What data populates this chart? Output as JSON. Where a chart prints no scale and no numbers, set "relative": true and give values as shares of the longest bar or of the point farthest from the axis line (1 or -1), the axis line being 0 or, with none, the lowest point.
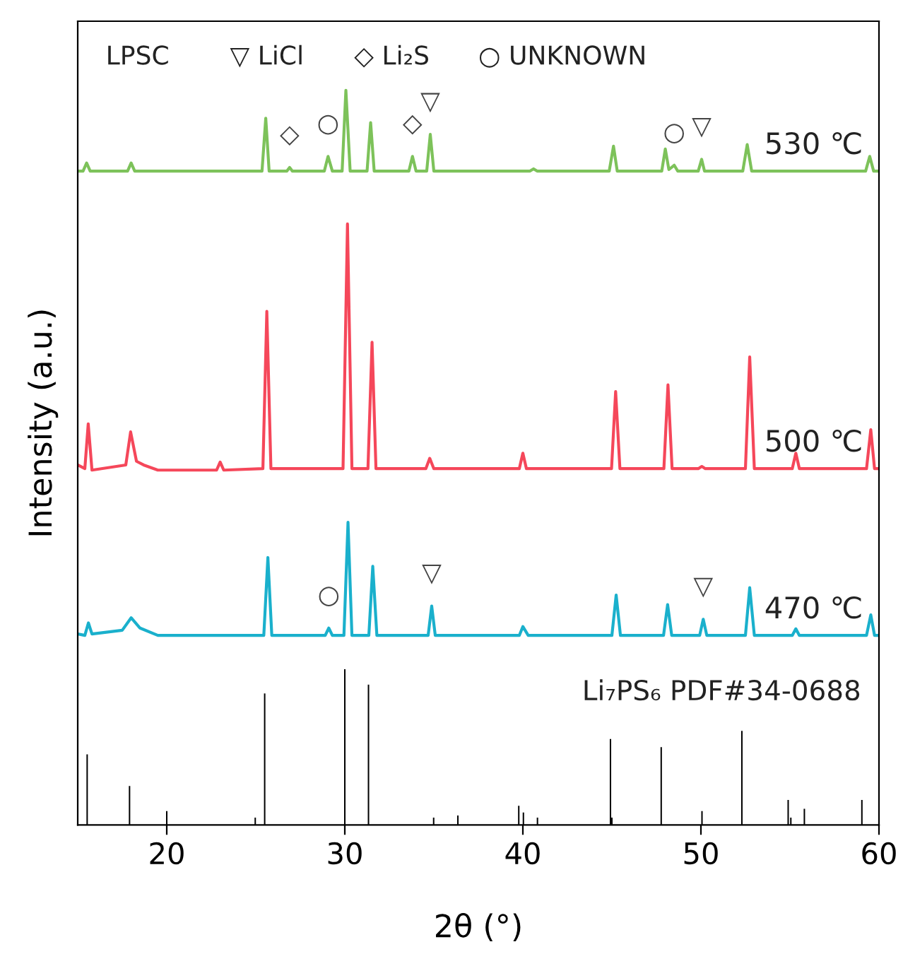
{
  "chart_data": {
    "type": "line",
    "relative": true,
    "xlabel": "2θ (°)",
    "ylabel": "Intensity (a.u.)",
    "xlim": [
      15,
      60
    ],
    "xticks": [
      20,
      30,
      40,
      50,
      60
    ],
    "tick_labels": "x",
    "grid": false,
    "legend": false,
    "marker": "none",
    "line_style": "solid",
    "series": [
      {
        "name": "530 ℃",
        "color": "#7dc25a",
        "x": [
          15.0,
          15.3,
          15.5,
          15.7,
          17.8,
          18.0,
          18.2,
          25.35,
          25.56,
          25.75,
          26.75,
          26.9,
          27.05,
          28.85,
          29.06,
          29.3,
          29.85,
          30.06,
          30.3,
          31.25,
          31.45,
          31.65,
          33.6,
          33.8,
          34.0,
          34.6,
          34.8,
          35.0,
          40.4,
          40.6,
          40.8,
          44.85,
          45.09,
          45.3,
          47.8,
          48.0,
          48.2,
          48.5,
          48.7,
          49.85,
          50.04,
          50.2,
          52.35,
          52.6,
          52.85,
          59.25,
          59.48,
          59.7,
          60.0
        ],
        "values": [
          0.89,
          0.89,
          0.901,
          0.89,
          0.89,
          0.901,
          0.89,
          0.89,
          0.962,
          0.89,
          0.89,
          0.895,
          0.89,
          0.89,
          0.91,
          0.89,
          0.89,
          1.0,
          0.89,
          0.89,
          0.956,
          0.89,
          0.89,
          0.91,
          0.89,
          0.89,
          0.94,
          0.89,
          0.89,
          0.893,
          0.89,
          0.89,
          0.924,
          0.89,
          0.89,
          0.92,
          0.892,
          0.898,
          0.89,
          0.89,
          0.906,
          0.89,
          0.89,
          0.926,
          0.89,
          0.89,
          0.91,
          0.89,
          0.89
        ]
      },
      {
        "name": "500 ℃",
        "color": "#f5475a",
        "x": [
          15.0,
          15.4,
          15.59,
          15.8,
          17.7,
          17.97,
          18.3,
          18.7,
          19.5,
          22.8,
          23.0,
          23.2,
          25.4,
          25.62,
          25.85,
          29.9,
          30.15,
          30.4,
          31.3,
          31.53,
          31.75,
          34.55,
          34.77,
          35.0,
          39.8,
          40.0,
          40.2,
          44.98,
          45.21,
          45.45,
          47.92,
          48.15,
          48.38,
          49.85,
          50.05,
          50.25,
          52.5,
          52.74,
          53.0,
          55.13,
          55.33,
          55.53,
          59.3,
          59.54,
          59.75,
          60.0
        ],
        "values": [
          0.49,
          0.485,
          0.546,
          0.483,
          0.49,
          0.535,
          0.495,
          0.49,
          0.483,
          0.483,
          0.494,
          0.483,
          0.485,
          0.699,
          0.485,
          0.485,
          0.818,
          0.485,
          0.485,
          0.657,
          0.485,
          0.485,
          0.499,
          0.485,
          0.485,
          0.506,
          0.485,
          0.485,
          0.59,
          0.485,
          0.485,
          0.599,
          0.485,
          0.485,
          0.488,
          0.485,
          0.485,
          0.637,
          0.485,
          0.485,
          0.506,
          0.485,
          0.485,
          0.538,
          0.485,
          0.485
        ]
      },
      {
        "name": "470 ℃",
        "color": "#1ab0cc",
        "x": [
          15.0,
          15.4,
          15.6,
          15.8,
          17.5,
          18.0,
          18.5,
          19.5,
          25.45,
          25.68,
          25.9,
          28.9,
          29.1,
          29.3,
          29.95,
          30.18,
          30.4,
          31.35,
          31.57,
          31.8,
          34.68,
          34.88,
          35.08,
          39.8,
          40.0,
          40.3,
          45.0,
          45.24,
          45.48,
          47.9,
          48.13,
          48.36,
          49.93,
          50.13,
          50.33,
          52.5,
          52.74,
          53.0,
          55.13,
          55.33,
          55.53,
          59.3,
          59.54,
          59.75,
          60.0
        ],
        "values": [
          0.26,
          0.258,
          0.275,
          0.26,
          0.265,
          0.282,
          0.268,
          0.258,
          0.258,
          0.364,
          0.258,
          0.258,
          0.268,
          0.258,
          0.258,
          0.412,
          0.258,
          0.258,
          0.352,
          0.258,
          0.258,
          0.298,
          0.258,
          0.258,
          0.27,
          0.258,
          0.258,
          0.313,
          0.258,
          0.258,
          0.3,
          0.258,
          0.258,
          0.28,
          0.258,
          0.258,
          0.323,
          0.258,
          0.258,
          0.267,
          0.258,
          0.258,
          0.286,
          0.258,
          0.258
        ]
      },
      {
        "name": "Li₇PS₆ PDF#34-0688",
        "color": "#000000",
        "type": "bar",
        "x": [
          15.53,
          17.91,
          20.0,
          24.97,
          25.5,
          30.0,
          31.33,
          34.99,
          36.35,
          39.77,
          40.03,
          40.82,
          44.92,
          45.0,
          47.77,
          50.06,
          52.3,
          54.9,
          55.05,
          55.81,
          59.04
        ],
        "values": [
          0.096,
          0.053,
          0.019,
          0.01,
          0.179,
          0.212,
          0.191,
          0.01,
          0.013,
          0.026,
          0.017,
          0.01,
          0.117,
          0.01,
          0.106,
          0.019,
          0.128,
          0.034,
          0.01,
          0.022,
          0.034
        ]
      }
    ],
    "annotations": [
      "LPSC",
      "▽ LiCl",
      "◇ Li₂S",
      "○ UNKNOWN",
      {
        "text": "◇",
        "x": 26.9,
        "y": 0.895
      },
      {
        "text": "○",
        "x": 29.06,
        "y": 0.91
      },
      {
        "text": "◇",
        "x": 33.8,
        "y": 0.91
      },
      {
        "text": "▽",
        "x": 34.8,
        "y": 0.94
      },
      {
        "text": "○",
        "x": 48.5,
        "y": 0.898
      },
      {
        "text": "▽",
        "x": 50.04,
        "y": 0.906
      },
      {
        "text": "○",
        "x": 29.1,
        "y": 0.268
      },
      {
        "text": "▽",
        "x": 34.88,
        "y": 0.298
      },
      {
        "text": "▽",
        "x": 50.13,
        "y": 0.28
      }
    ]
  }
}
